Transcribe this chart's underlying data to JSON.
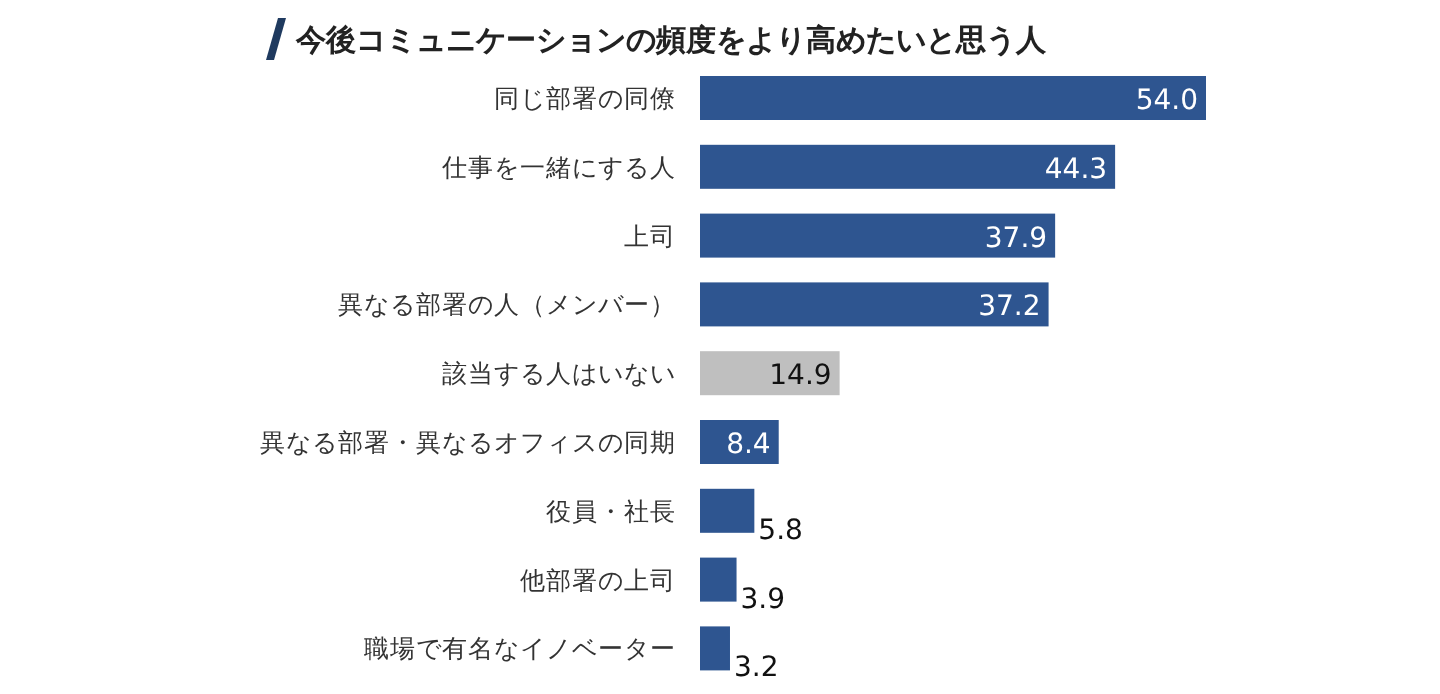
{
  "chart_data": {
    "type": "bar",
    "orientation": "horizontal",
    "title": "今後コミュニケーションの頻度をより高めたいと思う人",
    "categories": [
      "同じ部署の同僚",
      "仕事を一緒にする人",
      "上司",
      "異なる部署の人（メンバー）",
      "該当する人はいない",
      "異なる部署・異なるオフィスの同期",
      "役員・社長",
      "他部署の上司",
      "職場で有名なイノベーター"
    ],
    "values": [
      54.0,
      44.3,
      37.9,
      37.2,
      14.9,
      8.4,
      5.8,
      3.9,
      3.2
    ],
    "value_labels": [
      "54.0",
      "44.3",
      "37.9",
      "37.2",
      "14.9",
      "8.4",
      "5.8",
      "3.9",
      "3.2"
    ],
    "colors": [
      "#2e5590",
      "#2e5590",
      "#2e5590",
      "#2e5590",
      "#bfbfbf",
      "#2e5590",
      "#2e5590",
      "#2e5590",
      "#2e5590"
    ],
    "xlim": [
      0,
      54.0
    ],
    "tick_labels": "y"
  }
}
